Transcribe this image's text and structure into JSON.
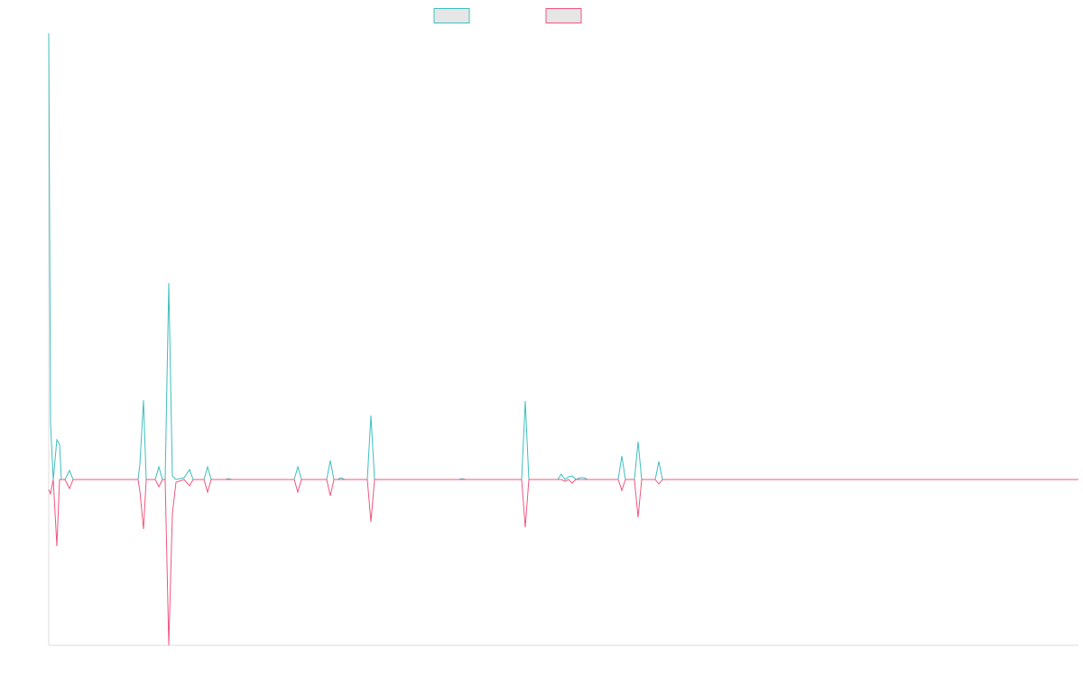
{
  "chart_data": {
    "type": "line",
    "x": [
      0,
      2,
      5,
      9,
      12,
      14,
      18,
      23,
      27,
      99,
      101,
      105,
      108,
      118,
      122,
      126,
      129,
      133,
      137,
      141,
      150,
      156,
      160,
      172,
      176,
      180,
      196,
      199,
      203,
      272,
      276,
      280,
      308,
      312,
      316,
      320,
      324,
      328,
      353,
      357,
      361,
      454,
      458,
      462,
      524,
      528,
      532,
      564,
      568,
      572,
      576,
      580,
      584,
      589,
      593,
      597,
      631,
      635,
      639,
      649,
      653,
      657,
      672,
      676,
      680,
      1141
    ],
    "series": [
      {
        "color": "#3dbfbf",
        "values": [
          495,
          62,
          0,
          44,
          39,
          0,
          0,
          10,
          0,
          0,
          17,
          88,
          0,
          0,
          14,
          0,
          0,
          218,
          4,
          0,
          2,
          11,
          0,
          0,
          14,
          0,
          0,
          1,
          0,
          0,
          14,
          0,
          0,
          21,
          0,
          0,
          2,
          0,
          0,
          71,
          0,
          0,
          1,
          0,
          0,
          87,
          0,
          0,
          6,
          0,
          3,
          4,
          0,
          2,
          2,
          0,
          0,
          26,
          0,
          0,
          42,
          0,
          0,
          20,
          0,
          0
        ]
      },
      {
        "color": "#f0567e",
        "values": [
          -11,
          -16,
          0,
          -74,
          0,
          0,
          0,
          -10,
          0,
          0,
          -13,
          -55,
          0,
          0,
          -8,
          0,
          0,
          -184,
          -38,
          -3,
          0,
          -7,
          0,
          0,
          -14,
          0,
          0,
          0,
          0,
          0,
          -14,
          0,
          0,
          -18,
          0,
          0,
          0,
          0,
          0,
          -47,
          0,
          0,
          0,
          0,
          0,
          -53,
          0,
          0,
          0,
          -2,
          0,
          -4,
          0,
          0,
          0,
          0,
          0,
          -12,
          0,
          0,
          -42,
          0,
          0,
          -5,
          0,
          0
        ]
      }
    ],
    "xlim": [
      0,
      1141
    ],
    "ylim": [
      -184,
      495
    ]
  }
}
